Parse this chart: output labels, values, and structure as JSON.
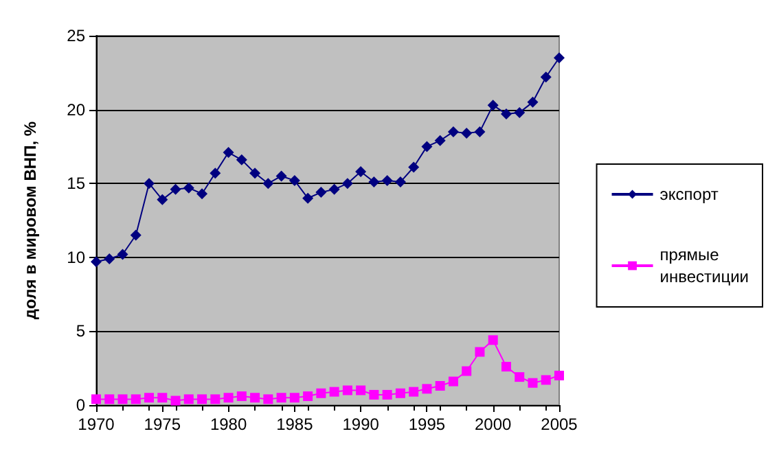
{
  "chart_data": {
    "type": "line",
    "ylabel": "доля в мировом ВНП, %",
    "x": [
      1970,
      1971,
      1972,
      1973,
      1974,
      1975,
      1976,
      1977,
      1978,
      1979,
      1980,
      1981,
      1982,
      1983,
      1984,
      1985,
      1986,
      1987,
      1988,
      1989,
      1990,
      1991,
      1992,
      1993,
      1994,
      1995,
      1996,
      1997,
      1998,
      1999,
      2000,
      2001,
      2002,
      2003,
      2004,
      2005
    ],
    "series": [
      {
        "name": "экспорт",
        "color": "#000080",
        "marker": "diamond",
        "values": [
          9.7,
          9.9,
          10.2,
          11.5,
          15.0,
          13.9,
          14.6,
          14.7,
          14.3,
          15.7,
          17.1,
          16.6,
          15.7,
          15.0,
          15.5,
          15.2,
          14.0,
          14.4,
          14.6,
          15.0,
          15.8,
          15.1,
          15.2,
          15.1,
          16.1,
          17.5,
          17.9,
          18.5,
          18.4,
          18.5,
          20.3,
          19.7,
          19.8,
          20.5,
          22.2,
          23.5
        ]
      },
      {
        "name": "прямые инвестиции",
        "color": "#ff00ff",
        "marker": "square",
        "values": [
          0.4,
          0.4,
          0.4,
          0.4,
          0.5,
          0.5,
          0.3,
          0.4,
          0.4,
          0.4,
          0.5,
          0.6,
          0.5,
          0.4,
          0.5,
          0.5,
          0.6,
          0.8,
          0.9,
          1.0,
          1.0,
          0.7,
          0.7,
          0.8,
          0.9,
          1.1,
          1.3,
          1.6,
          2.3,
          3.6,
          4.4,
          2.6,
          1.9,
          1.5,
          1.7,
          2.0
        ]
      }
    ],
    "xlim": [
      1970,
      2005
    ],
    "xticks": [
      1970,
      1975,
      1980,
      1985,
      1990,
      1995,
      2000,
      2005
    ],
    "ylim": [
      0,
      25
    ],
    "yticks": [
      0,
      5,
      10,
      15,
      20,
      25
    ],
    "grid": "y",
    "legend": "right"
  }
}
